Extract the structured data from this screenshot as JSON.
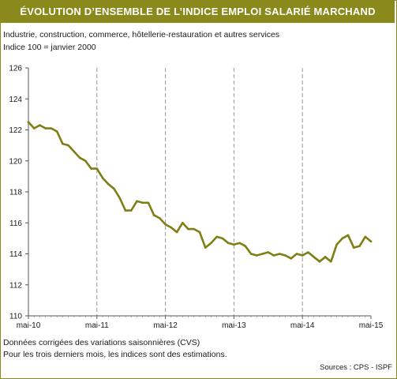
{
  "header": {
    "title": "ÉVOLUTION D’ENSEMBLE DE L’INDICE EMPLOI SALARIÉ MARCHAND",
    "subtitle1": "Industrie, construction, commerce, hôtellerie-restauration et autres services",
    "subtitle2": "Indice 100 = janvier 2000"
  },
  "footer": {
    "note1": "Données corrigées des variations saisonnières (CVS)",
    "note2": "Pour les trois derniers mois, les indices sont des estimations.",
    "source": "Sources : CPS - ISPF"
  },
  "colors": {
    "accent": "#8a8a1c",
    "line": "#7f7f16",
    "grid": "#9a9a9a"
  },
  "chart_data": {
    "type": "line",
    "title": "",
    "xlabel": "",
    "ylabel": "",
    "x_ticks": [
      "mai-10",
      "mai-11",
      "mai-12",
      "mai-13",
      "mai-14",
      "mai-15"
    ],
    "x_start": "mai-10",
    "x_end": "mai-15",
    "ylim": [
      110,
      126
    ],
    "y_ticks": [
      110,
      112,
      114,
      116,
      118,
      120,
      122,
      124,
      126
    ],
    "grid": "vertical dashed at yearly ticks",
    "series": [
      {
        "values": [
          122.5,
          122.1,
          122.3,
          122.1,
          122.1,
          121.9,
          121.1,
          121.0,
          120.6,
          120.2,
          120.0,
          119.5,
          119.5,
          118.9,
          118.5,
          118.2,
          117.6,
          116.8,
          116.8,
          117.4,
          117.3,
          117.3,
          116.5,
          116.3,
          115.9,
          115.7,
          115.4,
          116.0,
          115.6,
          115.6,
          115.4,
          114.4,
          114.7,
          115.1,
          115.0,
          114.7,
          114.6,
          114.7,
          114.5,
          114.0,
          113.9,
          114.0,
          114.1,
          113.9,
          114.0,
          113.9,
          113.7,
          114.0,
          113.9,
          114.1,
          113.8,
          113.5,
          113.8,
          113.5,
          114.6,
          115.0,
          115.2,
          114.4,
          114.5,
          115.1,
          114.8
        ]
      }
    ]
  }
}
